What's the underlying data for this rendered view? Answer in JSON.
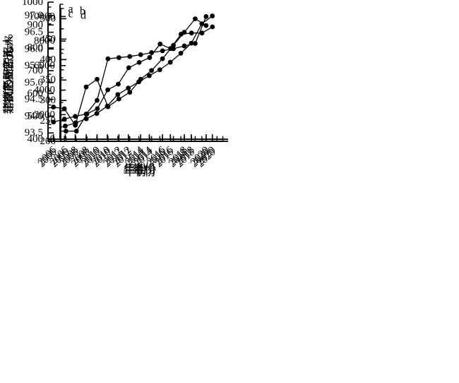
{
  "figure": {
    "background": "#ffffff",
    "ink_color": "#000000",
    "marker_shape": "filled-circle",
    "x_axis_title": "年份"
  },
  "chart_data": [
    {
      "type": "line",
      "panel_label": "a",
      "xlabel": "年份",
      "ylabel": "常住人口/万人",
      "x": [
        2006,
        2007,
        2008,
        2009,
        2010,
        2011,
        2012,
        2013,
        2014,
        2015,
        2016,
        2017,
        2018,
        2019,
        2020
      ],
      "values": [
        475,
        488,
        500,
        510,
        570,
        752,
        757,
        762,
        770,
        779,
        787,
        796,
        808,
        819,
        937
      ],
      "ylim": [
        400,
        1000
      ],
      "yticks": [
        400,
        500,
        600,
        700,
        800,
        900,
        1000
      ],
      "yminors": [
        450,
        550,
        650,
        750,
        850,
        950
      ],
      "ytick_decimals": 0,
      "xlim": [
        2005.5,
        2021.5
      ],
      "xticks_major": [
        2006,
        2008,
        2010,
        2012,
        2014,
        2016,
        2018,
        2020
      ],
      "xticks_minor": [
        2007,
        2009,
        2011,
        2013,
        2015,
        2017,
        2019,
        2021
      ],
      "grid": false,
      "legend": null
    },
    {
      "type": "line",
      "panel_label": "b",
      "xlabel": "年份",
      "ylabel": "GDP/亿元",
      "x": [
        2006,
        2007,
        2008,
        2009,
        2010,
        2011,
        2012,
        2013,
        2014,
        2015,
        2016,
        2017,
        2018,
        2019,
        2020
      ],
      "values": [
        1075,
        1335,
        1665,
        2100,
        2700,
        3640,
        4165,
        4675,
        5180,
        5660,
        6275,
        7005,
        7825,
        9410,
        10045
      ],
      "ylim": [
        0,
        11000
      ],
      "yticks": [
        0,
        2000,
        4000,
        6000,
        8000,
        10000
      ],
      "yminors": [
        1000,
        3000,
        5000,
        7000,
        9000,
        11000
      ],
      "ytick_decimals": 0,
      "xlim": [
        2005.5,
        2021.5
      ],
      "xticks_major": [
        2006,
        2008,
        2010,
        2012,
        2014,
        2016,
        2018,
        2020
      ],
      "xticks_minor": [
        2007,
        2009,
        2011,
        2013,
        2015,
        2017,
        2019,
        2021
      ],
      "grid": false,
      "legend": null
    },
    {
      "type": "line",
      "panel_label": "c",
      "xlabel": "年份",
      "ylabel": "非农产业占比/%",
      "x": [
        2006,
        2007,
        2008,
        2009,
        2010,
        2011,
        2012,
        2013,
        2014,
        2015,
        2016,
        2017,
        2018,
        2019,
        2020
      ],
      "values": [
        94.27,
        94.22,
        93.73,
        94.87,
        95.1,
        94.28,
        94.51,
        94.71,
        95.1,
        95.36,
        95.71,
        96.11,
        96.5,
        96.9,
        96.7
      ],
      "ylim": [
        93.25,
        97.25
      ],
      "yticks": [
        93.5,
        94.0,
        94.5,
        95.0,
        95.5,
        96.0,
        96.5,
        97.0
      ],
      "yminors": [
        93.75,
        94.25,
        94.75,
        95.25,
        95.75,
        96.25,
        96.75,
        97.25
      ],
      "ytick_decimals": 1,
      "xlim": [
        2005.5,
        2021.5
      ],
      "xticks_major": [
        2006,
        2008,
        2010,
        2012,
        2014,
        2016,
        2018,
        2020
      ],
      "xticks_minor": [
        2007,
        2009,
        2011,
        2013,
        2015,
        2017,
        2019,
        2021
      ],
      "grid": false,
      "legend": null
    },
    {
      "type": "line",
      "panel_label": "d",
      "xlabel": "年份",
      "ylabel": "建成区面积/km²",
      "x": [
        2006,
        2007,
        2008,
        2009,
        2010,
        2011,
        2012,
        2013,
        2014,
        2015,
        2016,
        2017,
        2018,
        2019,
        2020
      ],
      "values": [
        225,
        225,
        267,
        280,
        326,
        340,
        380,
        393,
        405,
        438,
        427,
        462,
        465,
        465,
        480
      ],
      "ylim": [
        200,
        525
      ],
      "yticks": [
        200,
        250,
        300,
        350,
        400,
        450,
        500
      ],
      "yminors": [
        225,
        275,
        325,
        375,
        425,
        475,
        525
      ],
      "ytick_decimals": 0,
      "xlim": [
        2005.5,
        2021.5
      ],
      "xticks_major": [
        2006,
        2008,
        2010,
        2012,
        2014,
        2016,
        2018,
        2020
      ],
      "xticks_minor": [
        2007,
        2009,
        2011,
        2013,
        2015,
        2017,
        2019,
        2021
      ],
      "grid": false,
      "legend": null
    }
  ]
}
